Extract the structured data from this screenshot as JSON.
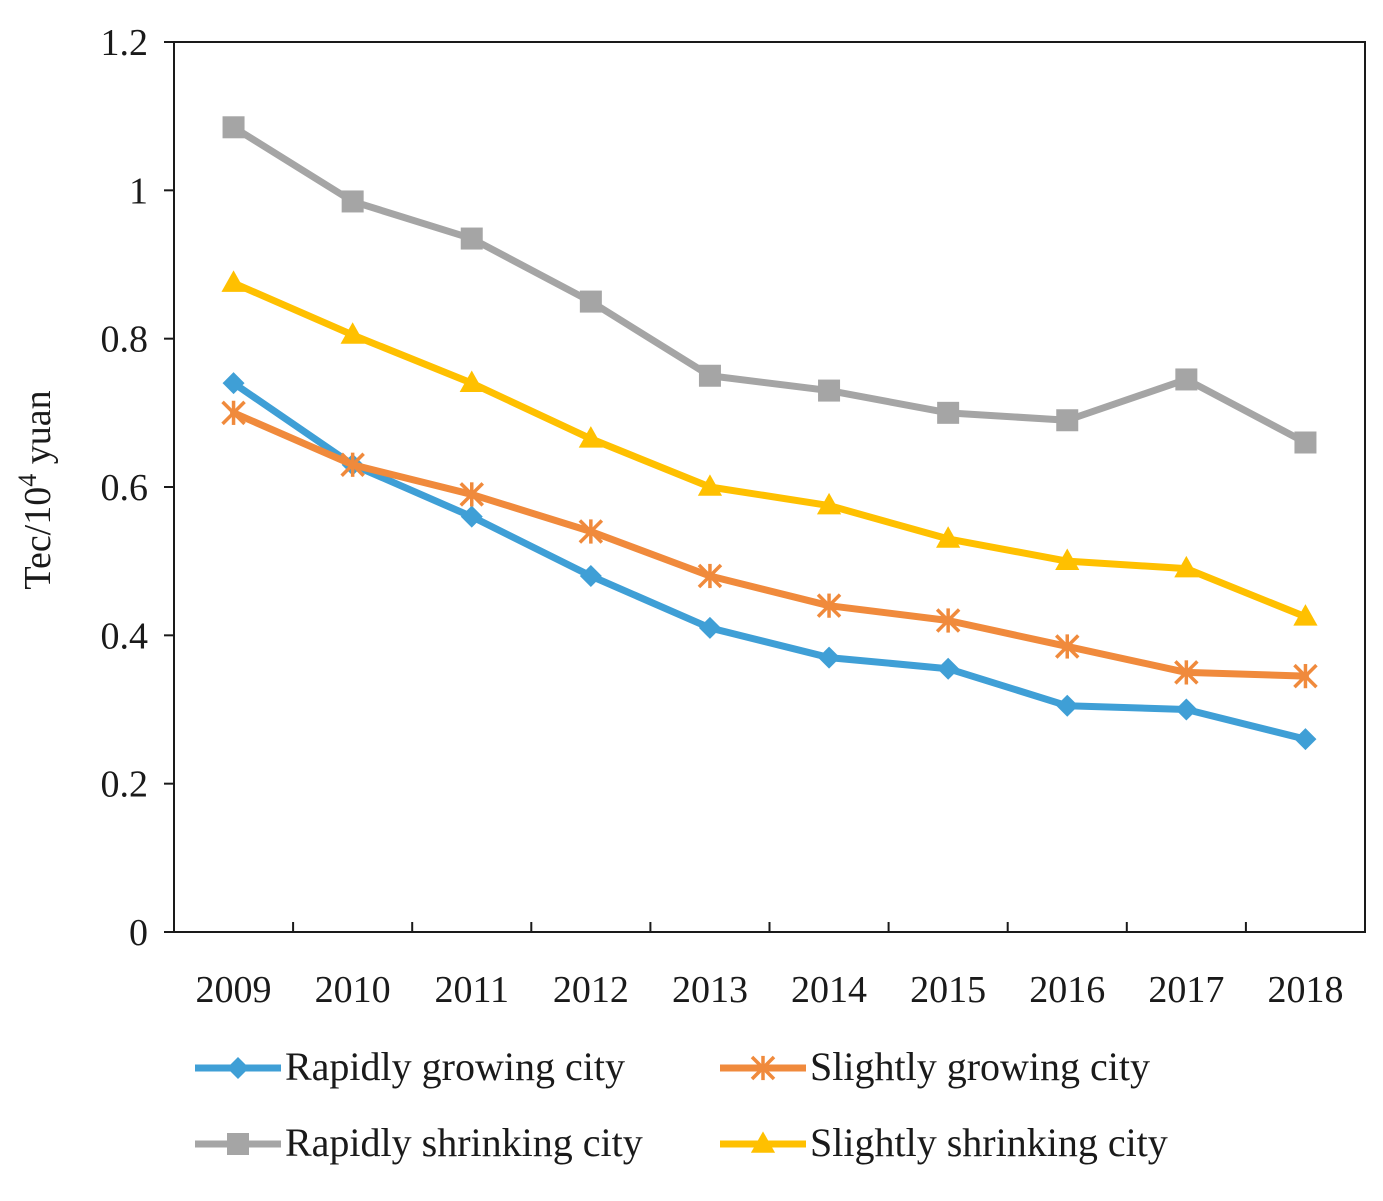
{
  "chart_data": {
    "type": "line",
    "title": "",
    "xlabel": "",
    "ylabel": "Tec/10",
    "ylabel_superscript": "4",
    "ylabel_suffix": " yuan",
    "categories": [
      "2009",
      "2010",
      "2011",
      "2012",
      "2013",
      "2014",
      "2015",
      "2016",
      "2017",
      "2018"
    ],
    "ylim": [
      0,
      1.2
    ],
    "yticks": [
      0,
      0.2,
      0.4,
      0.6,
      0.8,
      1,
      1.2
    ],
    "ytick_labels": [
      "0",
      "0.2",
      "0.4",
      "0.6",
      "0.8",
      "1",
      "1.2"
    ],
    "grid": false,
    "legend_position": "bottom",
    "series": [
      {
        "name": "Rapidly growing city",
        "color": "#3f9fd6",
        "marker": "diamond",
        "values": [
          0.74,
          0.63,
          0.56,
          0.48,
          0.41,
          0.37,
          0.355,
          0.305,
          0.3,
          0.26
        ]
      },
      {
        "name": "Slightly growing city",
        "color": "#f08a3c",
        "marker": "asterisk",
        "values": [
          0.7,
          0.63,
          0.59,
          0.54,
          0.48,
          0.44,
          0.42,
          0.385,
          0.35,
          0.345
        ]
      },
      {
        "name": "Rapidly shrinking city",
        "color": "#a5a5a5",
        "marker": "square",
        "values": [
          1.085,
          0.985,
          0.935,
          0.85,
          0.75,
          0.73,
          0.7,
          0.69,
          0.745,
          0.66
        ]
      },
      {
        "name": "Slightly shrinking city",
        "color": "#ffc000",
        "marker": "triangle",
        "values": [
          0.875,
          0.805,
          0.74,
          0.665,
          0.6,
          0.575,
          0.53,
          0.5,
          0.49,
          0.425
        ]
      }
    ]
  }
}
